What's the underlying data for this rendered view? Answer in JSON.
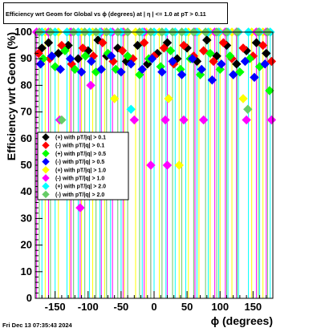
{
  "title": "Efficiency wrt Geom for Global vs ϕ (degrees) at |  η  | <= 1.0 at pT > 0.11",
  "footer": "Fri Dec 13 07:35:43 2024",
  "chart_data": {
    "type": "scatter",
    "xlabel": "ϕ (degrees)",
    "ylabel": "Efficiency wrt Geom (%)",
    "xlim": [
      -180,
      180
    ],
    "ylim": [
      0,
      100
    ],
    "x_ticks": [
      -150,
      -100,
      -50,
      0,
      50,
      100,
      150
    ],
    "y_ticks": [
      0,
      10,
      20,
      30,
      40,
      50,
      60,
      70,
      80,
      90,
      100
    ],
    "grid": false,
    "legend_position": "middle-left",
    "series": [
      {
        "name": "(+) with pT/|q| > 0.1",
        "color": "#000000",
        "marker": "diamond",
        "points": [
          [
            -170,
            94
          ],
          [
            -160,
            96
          ],
          [
            -145,
            92
          ],
          [
            -130,
            95
          ],
          [
            -115,
            90
          ],
          [
            -100,
            93
          ],
          [
            -85,
            97
          ],
          [
            -72,
            91
          ],
          [
            -55,
            94
          ],
          [
            -42,
            89
          ],
          [
            -25,
            95
          ],
          [
            -10,
            88
          ],
          [
            5,
            92
          ],
          [
            20,
            96
          ],
          [
            35,
            90
          ],
          [
            50,
            94
          ],
          [
            65,
            89
          ],
          [
            80,
            97
          ],
          [
            95,
            91
          ],
          [
            110,
            95
          ],
          [
            125,
            88
          ],
          [
            140,
            93
          ],
          [
            155,
            96
          ],
          [
            170,
            92
          ]
        ]
      },
      {
        "name": "(-) with pT/|q| > 0.1",
        "color": "#ff0000",
        "marker": "diamond",
        "points": [
          [
            -175,
            92
          ],
          [
            -158,
            90
          ],
          [
            -140,
            95
          ],
          [
            -125,
            88
          ],
          [
            -108,
            94
          ],
          [
            -92,
            91
          ],
          [
            -78,
            96
          ],
          [
            -62,
            89
          ],
          [
            -48,
            93
          ],
          [
            -32,
            90
          ],
          [
            -15,
            96
          ],
          [
            0,
            91
          ],
          [
            15,
            94
          ],
          [
            30,
            88
          ],
          [
            45,
            95
          ],
          [
            60,
            91
          ],
          [
            75,
            93
          ],
          [
            90,
            89
          ],
          [
            105,
            96
          ],
          [
            118,
            90
          ],
          [
            135,
            94
          ],
          [
            150,
            91
          ],
          [
            165,
            95
          ],
          [
            178,
            89
          ]
        ]
      },
      {
        "name": "(+) with pT/|q| > 0.5",
        "color": "#00ff00",
        "marker": "diamond",
        "points": [
          [
            -168,
            90
          ],
          [
            -150,
            87
          ],
          [
            -135,
            93
          ],
          [
            -120,
            86
          ],
          [
            -104,
            91
          ],
          [
            -88,
            85
          ],
          [
            -70,
            92
          ],
          [
            -58,
            86
          ],
          [
            -40,
            91
          ],
          [
            -22,
            84
          ],
          [
            -8,
            90
          ],
          [
            10,
            87
          ],
          [
            25,
            93
          ],
          [
            40,
            86
          ],
          [
            55,
            90
          ],
          [
            70,
            84
          ],
          [
            85,
            92
          ],
          [
            100,
            86
          ],
          [
            115,
            91
          ],
          [
            130,
            85
          ],
          [
            145,
            90
          ],
          [
            160,
            87
          ],
          [
            175,
            78
          ]
        ]
      },
      {
        "name": "(-) with pT/|q| > 0.5",
        "color": "#0000ff",
        "marker": "diamond",
        "points": [
          [
            -172,
            88
          ],
          [
            -155,
            91
          ],
          [
            -142,
            86
          ],
          [
            -127,
            90
          ],
          [
            -110,
            85
          ],
          [
            -95,
            89
          ],
          [
            -80,
            86
          ],
          [
            -65,
            91
          ],
          [
            -50,
            85
          ],
          [
            -35,
            88
          ],
          [
            -18,
            86
          ],
          [
            -3,
            90
          ],
          [
            12,
            85
          ],
          [
            28,
            89
          ],
          [
            42,
            84
          ],
          [
            58,
            90
          ],
          [
            72,
            86
          ],
          [
            88,
            82
          ],
          [
            102,
            88
          ],
          [
            120,
            84
          ],
          [
            138,
            89
          ],
          [
            152,
            83
          ],
          [
            168,
            88
          ]
        ]
      },
      {
        "name": "(+) with pT/|q| > 1.0",
        "color": "#ffff00",
        "marker": "diamond",
        "points": [
          [
            -165,
            100
          ],
          [
            -145,
            100
          ],
          [
            -128,
            100
          ],
          [
            -110,
            100
          ],
          [
            -93,
            100
          ],
          [
            -75,
            100
          ],
          [
            -60,
            75
          ],
          [
            -45,
            100
          ],
          [
            -28,
            100
          ],
          [
            -12,
            100
          ],
          [
            8,
            100
          ],
          [
            22,
            75
          ],
          [
            38,
            50
          ],
          [
            52,
            100
          ],
          [
            68,
            100
          ],
          [
            85,
            100
          ],
          [
            100,
            100
          ],
          [
            118,
            100
          ],
          [
            135,
            75
          ],
          [
            148,
            100
          ],
          [
            165,
            100
          ]
        ]
      },
      {
        "name": "(-) with pT/|q| > 1.0",
        "color": "#ff00ff",
        "marker": "diamond",
        "points": [
          [
            -178,
            100
          ],
          [
            -160,
            100
          ],
          [
            -143,
            67
          ],
          [
            -126,
            100
          ],
          [
            -112,
            34
          ],
          [
            -96,
            80
          ],
          [
            -80,
            100
          ],
          [
            -63,
            100
          ],
          [
            -47,
            100
          ],
          [
            -30,
            67
          ],
          [
            -15,
            100
          ],
          [
            -5,
            50
          ],
          [
            17,
            67
          ],
          [
            20,
            50
          ],
          [
            45,
            67
          ],
          [
            62,
            100
          ],
          [
            75,
            67
          ],
          [
            92,
            100
          ],
          [
            108,
            100
          ],
          [
            125,
            100
          ],
          [
            140,
            67
          ],
          [
            155,
            100
          ],
          [
            170,
            100
          ],
          [
            178,
            67
          ]
        ]
      },
      {
        "name": "(+) with pT/|q| > 2.0",
        "color": "#00ffff",
        "marker": "diamond",
        "points": [
          [
            -170,
            100
          ],
          [
            -150,
            100
          ],
          [
            -132,
            100
          ],
          [
            -115,
            100
          ],
          [
            -98,
            100
          ],
          [
            -82,
            100
          ],
          [
            -66,
            100
          ],
          [
            -50,
            100
          ],
          [
            -35,
            71
          ],
          [
            -18,
            100
          ],
          [
            0,
            100
          ],
          [
            18,
            100
          ],
          [
            32,
            100
          ],
          [
            48,
            100
          ],
          [
            65,
            100
          ],
          [
            82,
            100
          ],
          [
            98,
            100
          ],
          [
            112,
            100
          ],
          [
            128,
            100
          ],
          [
            143,
            100
          ],
          [
            160,
            100
          ],
          [
            176,
            100
          ]
        ]
      },
      {
        "name": "(-) with pT/|q| > 2.0",
        "color": "#66cc66",
        "marker": "diamond",
        "points": [
          [
            -174,
            100
          ],
          [
            -157,
            100
          ],
          [
            -140,
            67
          ],
          [
            -122,
            100
          ],
          [
            -105,
            100
          ],
          [
            -88,
            100
          ],
          [
            -72,
            100
          ],
          [
            -55,
            100
          ],
          [
            -40,
            100
          ],
          [
            -22,
            100
          ],
          [
            -5,
            100
          ],
          [
            12,
            100
          ],
          [
            28,
            100
          ],
          [
            42,
            100
          ],
          [
            60,
            100
          ],
          [
            78,
            100
          ],
          [
            95,
            100
          ],
          [
            110,
            100
          ],
          [
            126,
            100
          ],
          [
            142,
            71
          ],
          [
            158,
            100
          ],
          [
            172,
            100
          ]
        ]
      }
    ]
  }
}
